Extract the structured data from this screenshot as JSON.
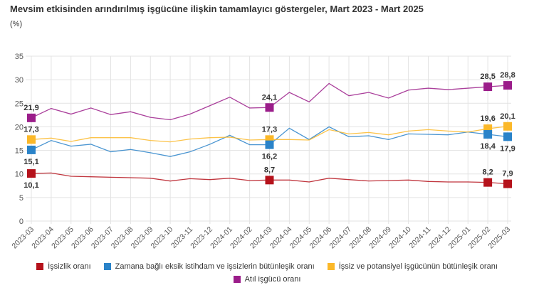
{
  "chart_data": {
    "type": "line",
    "title": "Mevsim etkisinden arındırılmış işgücüne ilişkin tamamlayıcı göstergeler, Mart 2023 - Mart 2025",
    "ylabel": "(%)",
    "ylim": [
      0,
      35
    ],
    "yticks": [
      "0",
      "5",
      "10",
      "15",
      "20",
      "25",
      "30",
      "35"
    ],
    "grid": true,
    "legend_position": "bottom",
    "x": [
      "2023-03",
      "2023-04",
      "2023-05",
      "2023-06",
      "2023-07",
      "2023-08",
      "2023-09",
      "2023-10",
      "2023-11",
      "2023-12",
      "2024-01",
      "2024-02",
      "2024-03",
      "2024-04",
      "2024-05",
      "2024-06",
      "2024-07",
      "2024-08",
      "2024-09",
      "2024-10",
      "2024-11",
      "2024-12",
      "2025-01",
      "2025-02",
      "2025-03"
    ],
    "labeled_points": [
      "2023-03",
      "2024-03",
      "2025-02",
      "2025-03"
    ],
    "series": [
      {
        "name": "İşsizlik oranı",
        "color": "#b5121b",
        "values": [
          10.1,
          10.2,
          9.5,
          9.4,
          9.3,
          9.2,
          9.1,
          8.5,
          9.0,
          8.8,
          9.1,
          8.6,
          8.7,
          8.7,
          8.3,
          9.1,
          8.8,
          8.5,
          8.6,
          8.7,
          8.4,
          8.3,
          8.3,
          8.2,
          7.9
        ],
        "labels": [
          "10,1",
          "8,7",
          "8,2",
          "7,9"
        ],
        "label_pos": "above"
      },
      {
        "name": "Zamana bağlı eksik istihdam ve işsizlerin bütünleşik oranı",
        "color": "#2a83c9",
        "values": [
          15.1,
          17.1,
          15.9,
          16.3,
          14.7,
          15.2,
          14.5,
          13.7,
          14.7,
          16.3,
          18.2,
          16.2,
          16.2,
          19.7,
          17.3,
          20.0,
          17.9,
          18.1,
          17.3,
          18.5,
          18.4,
          18.3,
          18.9,
          18.4,
          17.9
        ],
        "labels": [
          "15,1",
          "16,2",
          "18,4",
          "17,9"
        ],
        "label_pos": "below"
      },
      {
        "name": "İşsiz ve potansiyel işgücünün bütünleşik oranı",
        "color": "#fbb829",
        "values": [
          17.3,
          17.6,
          16.9,
          17.7,
          17.7,
          17.7,
          17.1,
          16.8,
          17.4,
          17.7,
          17.8,
          17.2,
          17.3,
          17.3,
          17.2,
          19.4,
          18.5,
          18.8,
          18.3,
          19.1,
          19.4,
          19.1,
          18.9,
          19.6,
          20.1
        ],
        "labels": [
          "17,3",
          "17,3",
          "19,6",
          "20,1"
        ],
        "label_pos": "above"
      },
      {
        "name": "Atıl işgücü oranı",
        "color": "#9b1d8a",
        "values": [
          21.9,
          23.9,
          22.7,
          24.0,
          22.6,
          23.2,
          22.0,
          21.5,
          22.7,
          24.5,
          26.3,
          24.0,
          24.1,
          27.3,
          25.3,
          29.2,
          26.6,
          27.3,
          26.1,
          27.8,
          28.2,
          27.9,
          28.2,
          28.5,
          28.8
        ],
        "labels": [
          "21,9",
          "24,1",
          "28,5",
          "28,8"
        ],
        "label_pos": "above"
      }
    ]
  }
}
